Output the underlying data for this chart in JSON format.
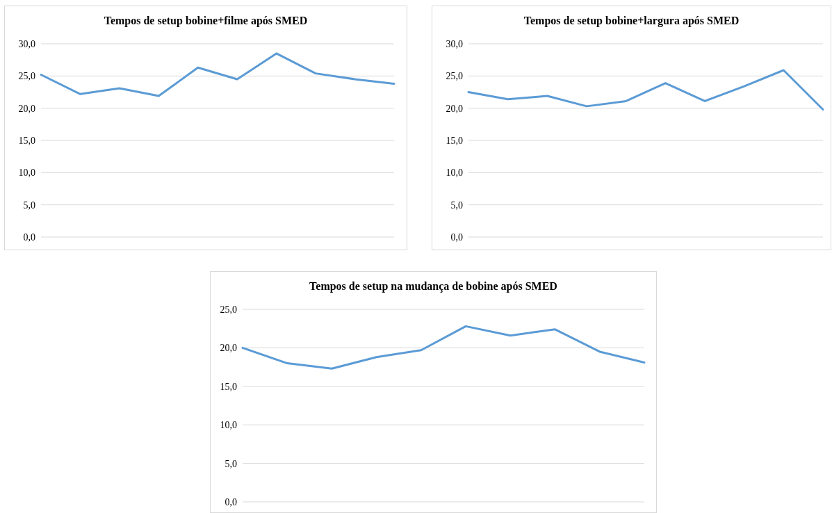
{
  "chart_data": [
    {
      "type": "line",
      "title": "Tempos de setup bobine+filme após SMED",
      "categories": [
        null,
        null,
        null,
        null,
        null,
        null,
        null,
        null,
        null,
        null
      ],
      "series": [
        {
          "color": "#5b9bd5",
          "values": [
            25.2,
            22.2,
            23.1,
            21.9,
            26.3,
            24.5,
            28.5,
            25.4,
            24.5,
            23.8
          ]
        }
      ],
      "ylim": [
        0,
        30
      ],
      "yticks": [
        {
          "value": 0,
          "label": "0,0"
        },
        {
          "value": 5,
          "label": "5,0"
        },
        {
          "value": 10,
          "label": "10,0"
        },
        {
          "value": 15,
          "label": "15,0"
        },
        {
          "value": 20,
          "label": "20,0"
        },
        {
          "value": 25,
          "label": "25,0"
        },
        {
          "value": 30,
          "label": "30,0"
        }
      ],
      "grid": "y",
      "tick_labels": "y",
      "marker": "none"
    },
    {
      "type": "line",
      "title": "Tempos de setup bobine+largura após SMED",
      "categories": [
        null,
        null,
        null,
        null,
        null,
        null,
        null,
        null,
        null,
        null
      ],
      "series": [
        {
          "color": "#5b9bd5",
          "values": [
            22.5,
            21.4,
            21.9,
            20.3,
            21.1,
            23.9,
            21.1,
            23.4,
            25.9,
            19.8
          ]
        }
      ],
      "ylim": [
        0,
        30
      ],
      "yticks": [
        {
          "value": 0,
          "label": "0,0"
        },
        {
          "value": 5,
          "label": "5,0"
        },
        {
          "value": 10,
          "label": "10,0"
        },
        {
          "value": 15,
          "label": "15,0"
        },
        {
          "value": 20,
          "label": "20,0"
        },
        {
          "value": 25,
          "label": "25,0"
        },
        {
          "value": 30,
          "label": "30,0"
        }
      ],
      "grid": "y",
      "tick_labels": "y",
      "marker": "none"
    },
    {
      "type": "line",
      "title": "Tempos de setup na mudança de bobine após SMED",
      "categories": [
        null,
        null,
        null,
        null,
        null,
        null,
        null,
        null,
        null,
        null
      ],
      "series": [
        {
          "color": "#5b9bd5",
          "values": [
            20.0,
            18.0,
            17.3,
            18.8,
            19.7,
            22.8,
            21.6,
            22.4,
            19.5,
            18.1
          ]
        }
      ],
      "ylim": [
        0,
        25
      ],
      "yticks": [
        {
          "value": 0,
          "label": "0,0"
        },
        {
          "value": 5,
          "label": "5,0"
        },
        {
          "value": 10,
          "label": "10,0"
        },
        {
          "value": 15,
          "label": "15,0"
        },
        {
          "value": 20,
          "label": "20,0"
        },
        {
          "value": 25,
          "label": "25,0"
        }
      ],
      "grid": "y",
      "tick_labels": "y",
      "marker": "none"
    }
  ]
}
